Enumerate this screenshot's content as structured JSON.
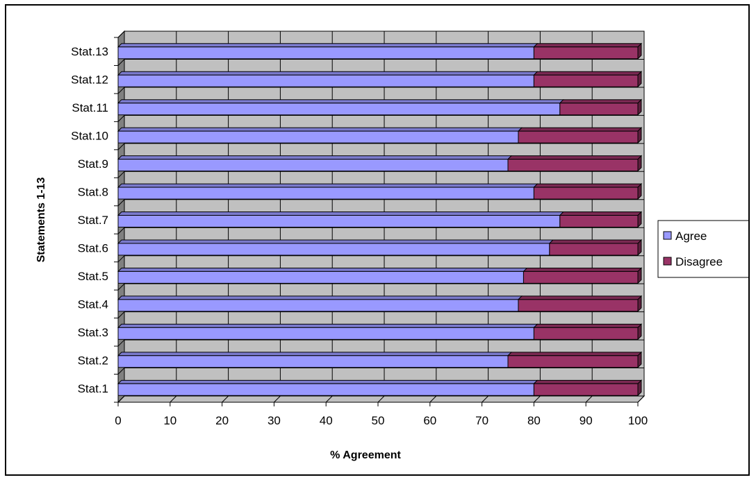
{
  "chart_data": {
    "type": "bar",
    "orientation": "horizontal",
    "stacked": true,
    "three_d": true,
    "categories": [
      "Stat.1",
      "Stat.2",
      "Stat.3",
      "Stat.4",
      "Stat.5",
      "Stat.6",
      "Stat.7",
      "Stat.8",
      "Stat.9",
      "Stat.10",
      "Stat.11",
      "Stat.12",
      "Stat.13"
    ],
    "series": [
      {
        "name": "Agree",
        "color": "#9999FF",
        "values": [
          80,
          75,
          80,
          77,
          78,
          83,
          85,
          80,
          75,
          77,
          85,
          80,
          80
        ]
      },
      {
        "name": "Disagree",
        "color": "#993366",
        "values": [
          20,
          25,
          20,
          23,
          22,
          17,
          15,
          20,
          25,
          23,
          15,
          20,
          20
        ]
      }
    ],
    "xlabel": "% Agreement",
    "ylabel": "Statements 1-13",
    "xlim": [
      0,
      100
    ],
    "xticks": [
      0,
      10,
      20,
      30,
      40,
      50,
      60,
      70,
      80,
      90,
      100
    ],
    "grid": true,
    "wall_color": "#C0C0C0",
    "legend_position": "right"
  }
}
